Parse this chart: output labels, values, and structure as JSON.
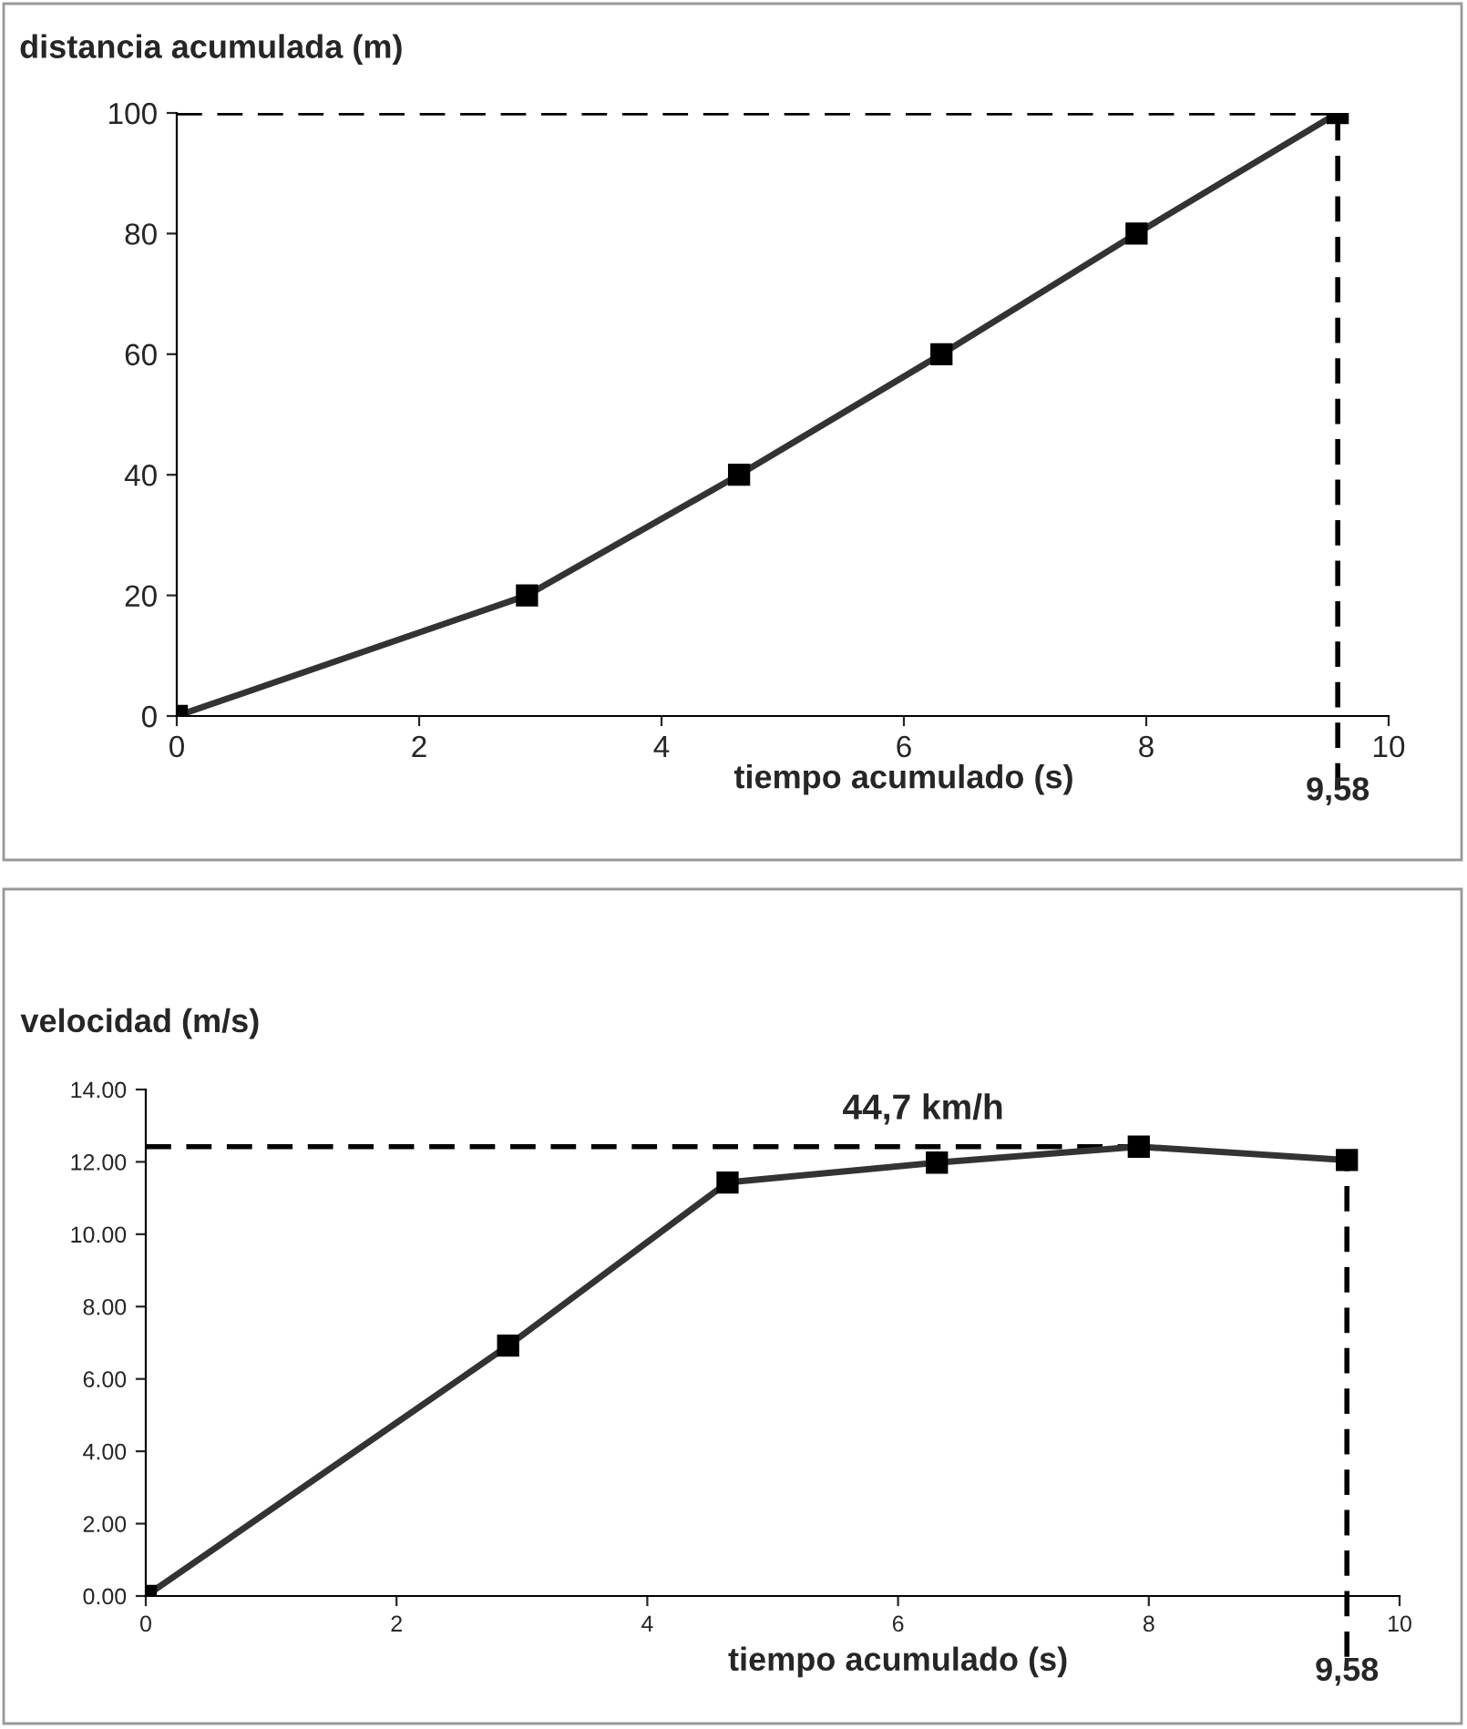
{
  "chart_data": [
    {
      "type": "line",
      "ylabel": "distancia acumulada (m)",
      "xlabel": "tiempo acumulado (s)",
      "x": [
        0,
        2.89,
        4.64,
        6.31,
        7.92,
        9.58
      ],
      "series": [
        {
          "color": "#333333",
          "values": [
            0,
            20,
            40,
            60,
            80,
            100
          ]
        }
      ],
      "xlim": [
        0,
        10
      ],
      "xticks": [
        0,
        2,
        4,
        6,
        8,
        10
      ],
      "ylim": [
        0,
        100
      ],
      "yticks": [
        0,
        20,
        40,
        60,
        80,
        100
      ],
      "marker": "square",
      "line_style": "solid",
      "grid": false,
      "legend": false,
      "ref_lines": [
        {
          "axis": "y",
          "value": 100,
          "line_style": "dashed",
          "color": "#000000"
        },
        {
          "axis": "x",
          "value": 9.58,
          "label": "9,58",
          "line_style": "dashed",
          "color": "#000000"
        }
      ]
    },
    {
      "type": "line",
      "ylabel": "velocidad (m/s)",
      "xlabel": "tiempo acumulado (s)",
      "x": [
        0,
        2.89,
        4.64,
        6.31,
        7.92,
        9.58
      ],
      "series": [
        {
          "color": "#333333",
          "values": [
            0,
            6.92,
            11.43,
            11.98,
            12.42,
            12.05
          ]
        }
      ],
      "xlim": [
        0,
        10
      ],
      "xticks": [
        0,
        2,
        4,
        6,
        8,
        10
      ],
      "ylim": [
        0,
        14
      ],
      "yticks": [
        {
          "value": 0,
          "label": "0.00"
        },
        {
          "value": 2,
          "label": "2.00"
        },
        {
          "value": 4,
          "label": "4.00"
        },
        {
          "value": 6,
          "label": "6.00"
        },
        {
          "value": 8,
          "label": "8.00"
        },
        {
          "value": 10,
          "label": "10.00"
        },
        {
          "value": 12,
          "label": "12.00"
        },
        {
          "value": 14,
          "label": "14.00"
        }
      ],
      "marker": "square",
      "line_style": "solid",
      "grid": false,
      "legend": false,
      "ref_lines": [
        {
          "axis": "y",
          "value": 12.42,
          "label": "44,7 km/h",
          "line_style": "dashed",
          "color": "#000000"
        },
        {
          "axis": "x",
          "value": 9.58,
          "label": "9,58",
          "line_style": "dashed",
          "color": "#000000"
        }
      ]
    }
  ]
}
